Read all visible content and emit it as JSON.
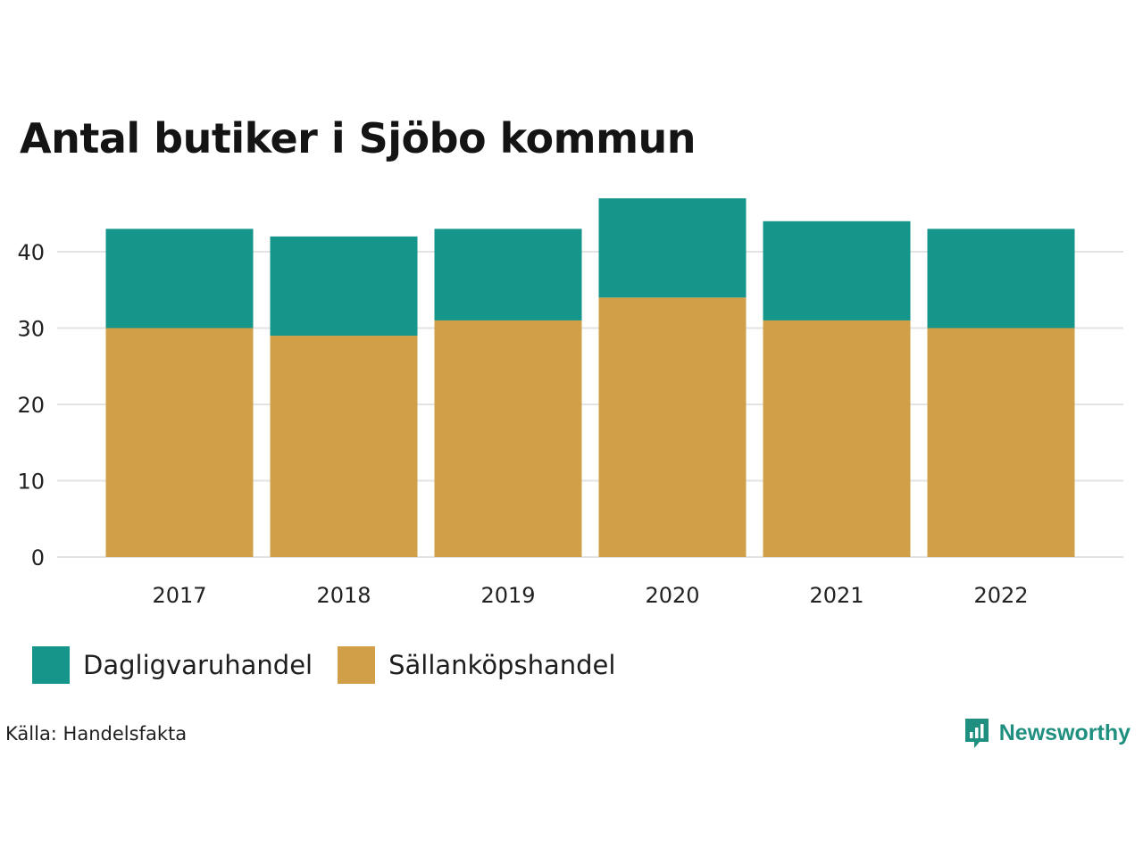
{
  "title": "Antal butiker i Sjöbo kommun",
  "source": "Källa: Handelsfakta",
  "brand": {
    "name": "Newsworthy",
    "color": "#1f8f7f"
  },
  "chart_data": {
    "type": "bar",
    "stacked": true,
    "categories": [
      "2017",
      "2018",
      "2019",
      "2020",
      "2021",
      "2022"
    ],
    "series": [
      {
        "name": "Sällanköpshandel",
        "color": "#d19f48",
        "values": [
          30,
          29,
          31,
          34,
          31,
          30
        ]
      },
      {
        "name": "Dagligvaruhandel",
        "color": "#16968a",
        "values": [
          13,
          13,
          12,
          13,
          13,
          13
        ]
      }
    ],
    "yticks": [
      "0",
      "10",
      "20",
      "30",
      "40"
    ],
    "ylim": [
      0,
      47
    ],
    "grid": true,
    "legend_position": "bottom-left",
    "xlabel": "",
    "ylabel": ""
  }
}
